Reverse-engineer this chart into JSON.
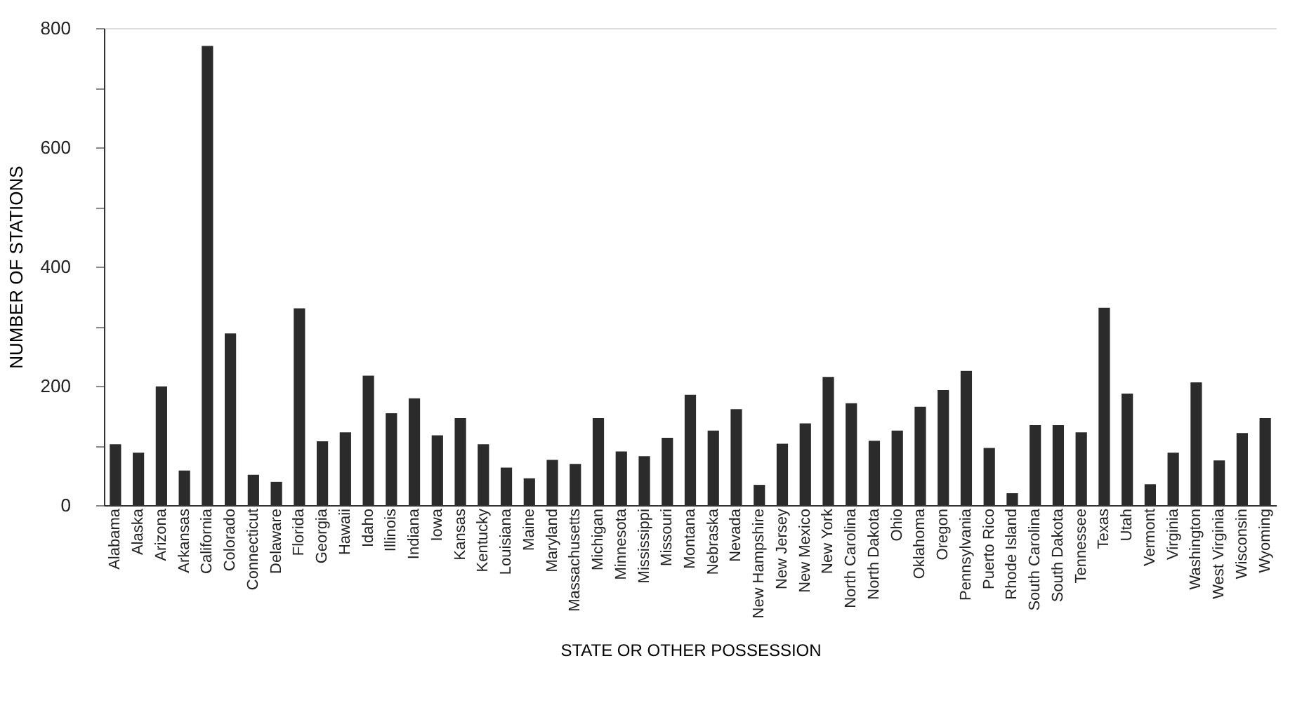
{
  "chart_data": {
    "type": "bar",
    "xlabel": "STATE OR OTHER POSSESSION",
    "ylabel": "NUMBER OF STATIONS",
    "categories": [
      "Alabama",
      "Alaska",
      "Arizona",
      "Arkansas",
      "California",
      "Colorado",
      "Connecticut",
      "Delaware",
      "Florida",
      "Georgia",
      "Hawaii",
      "Idaho",
      "Illinois",
      "Indiana",
      "Iowa",
      "Kansas",
      "Kentucky",
      "Louisiana",
      "Maine",
      "Maryland",
      "Massachusetts",
      "Michigan",
      "Minnesota",
      "Mississippi",
      "Missouri",
      "Montana",
      "Nebraska",
      "Nevada",
      "New Hampshire",
      "New Jersey",
      "New Mexico",
      "New York",
      "North Carolina",
      "North Dakota",
      "Ohio",
      "Oklahoma",
      "Oregon",
      "Pennsylvania",
      "Puerto Rico",
      "Rhode Island",
      "South Carolina",
      "South Dakota",
      "Tennessee",
      "Texas",
      "Utah",
      "Vermont",
      "Virginia",
      "Washington",
      "West Virginia",
      "Wisconsin",
      "Wyoming"
    ],
    "values": [
      102,
      88,
      199,
      58,
      770,
      288,
      51,
      39,
      330,
      107,
      122,
      217,
      154,
      179,
      117,
      146,
      102,
      63,
      45,
      76,
      69,
      146,
      90,
      82,
      113,
      185,
      125,
      161,
      34,
      103,
      137,
      215,
      171,
      108,
      125,
      165,
      193,
      225,
      96,
      20,
      134,
      134,
      122,
      331,
      187,
      35,
      88,
      206,
      75,
      121,
      146
    ],
    "color": "#2b2b2b",
    "ylim": [
      0,
      800
    ],
    "yticks": [
      0,
      {
        "value": 100,
        "label": null
      },
      200,
      {
        "value": 300,
        "label": null
      },
      400,
      {
        "value": 500,
        "label": null
      },
      600,
      {
        "value": 700,
        "label": null
      },
      800
    ],
    "grid": false,
    "legend": false
  }
}
